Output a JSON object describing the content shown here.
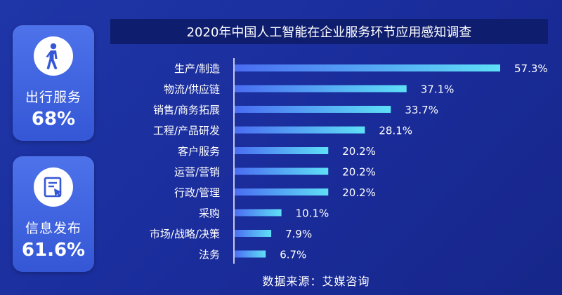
{
  "cards": [
    {
      "label": "出行服务",
      "value": "68%",
      "icon": "walking-person-icon"
    },
    {
      "label": "信息发布",
      "value": "61.6%",
      "icon": "document-pointer-icon"
    }
  ],
  "colors": {
    "bar_start": "#4a6cf2",
    "bar_end": "#5fe0f6",
    "axis": "#ffffff"
  },
  "source": "数据来源：艾媒咨询",
  "chart_data": {
    "type": "bar",
    "orientation": "horizontal",
    "title": "2020年中国人工智能在企业服务环节应用感知调查",
    "categories": [
      "生产/制造",
      "物流/供应链",
      "销售/商务拓展",
      "工程/产品研发",
      "客户服务",
      "运营/营销",
      "行政/管理",
      "采购",
      "市场/战略/决策",
      "法务"
    ],
    "values": [
      57.3,
      37.1,
      33.7,
      28.1,
      20.2,
      20.2,
      20.2,
      10.1,
      7.9,
      6.7
    ],
    "value_labels": [
      "57.3%",
      "37.1%",
      "33.7%",
      "28.1%",
      "20.2%",
      "20.2%",
      "20.2%",
      "10.1%",
      "7.9%",
      "6.7%"
    ],
    "xlim": [
      0,
      60
    ],
    "grid": false,
    "legend": "none"
  }
}
